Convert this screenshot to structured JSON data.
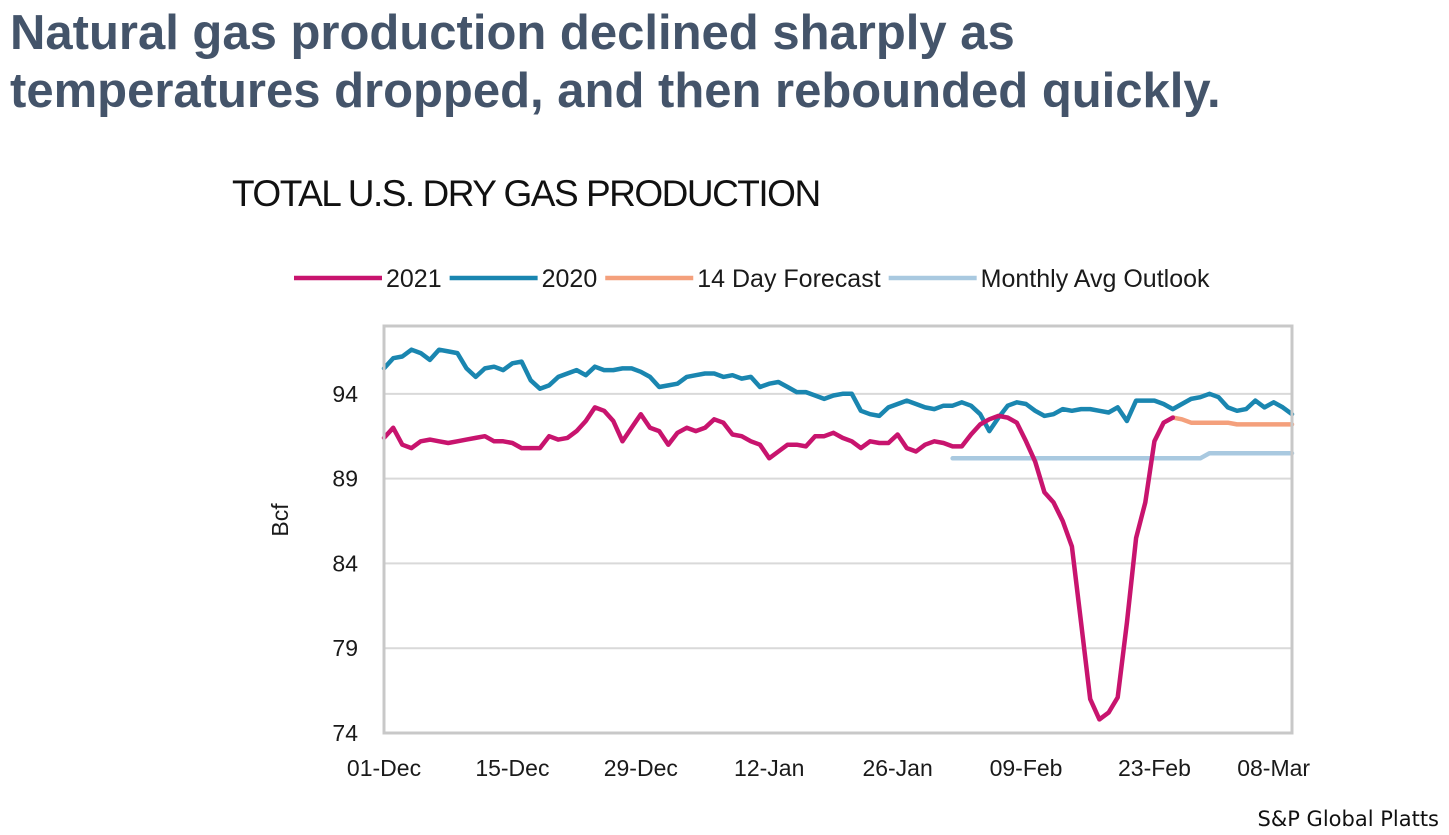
{
  "headline": {
    "line1": "Natural gas production declined sharply as",
    "line2": "temperatures dropped, and then rebounded quickly."
  },
  "source": "S&P Global Platts",
  "colors": {
    "headline": "#44546a",
    "series_2021": "#c8146e",
    "series_2020": "#1a86b0",
    "series_forecast": "#f4a07c",
    "series_outlook": "#a9c9e0"
  },
  "chart_data": {
    "type": "line",
    "title": "TOTAL U.S. DRY GAS PRODUCTION",
    "xlabel": "",
    "ylabel": "Bcf",
    "xlim": [
      "01-Dec",
      "10-Mar"
    ],
    "ylim": [
      74,
      98
    ],
    "yticks": [
      74,
      79,
      84,
      89,
      94
    ],
    "xticks": [
      "01-Dec",
      "15-Dec",
      "29-Dec",
      "12-Jan",
      "26-Jan",
      "09-Feb",
      "23-Feb",
      "08-Mar"
    ],
    "grid": true,
    "legend_position": "top",
    "series": [
      {
        "name": "2021",
        "color": "#c8146e",
        "x": [
          "01-Dec",
          "02-Dec",
          "03-Dec",
          "04-Dec",
          "05-Dec",
          "06-Dec",
          "07-Dec",
          "08-Dec",
          "09-Dec",
          "10-Dec",
          "11-Dec",
          "12-Dec",
          "13-Dec",
          "14-Dec",
          "15-Dec",
          "16-Dec",
          "17-Dec",
          "18-Dec",
          "19-Dec",
          "20-Dec",
          "21-Dec",
          "22-Dec",
          "23-Dec",
          "24-Dec",
          "25-Dec",
          "26-Dec",
          "27-Dec",
          "28-Dec",
          "29-Dec",
          "30-Dec",
          "31-Dec",
          "01-Jan",
          "02-Jan",
          "03-Jan",
          "04-Jan",
          "05-Jan",
          "06-Jan",
          "07-Jan",
          "08-Jan",
          "09-Jan",
          "10-Jan",
          "11-Jan",
          "12-Jan",
          "13-Jan",
          "14-Jan",
          "15-Jan",
          "16-Jan",
          "17-Jan",
          "18-Jan",
          "19-Jan",
          "20-Jan",
          "21-Jan",
          "22-Jan",
          "23-Jan",
          "24-Jan",
          "25-Jan",
          "26-Jan",
          "27-Jan",
          "28-Jan",
          "29-Jan",
          "30-Jan",
          "31-Jan",
          "01-Feb",
          "02-Feb",
          "03-Feb",
          "04-Feb",
          "05-Feb",
          "06-Feb",
          "07-Feb",
          "08-Feb",
          "09-Feb",
          "10-Feb",
          "11-Feb",
          "12-Feb",
          "13-Feb",
          "14-Feb",
          "15-Feb",
          "16-Feb",
          "17-Feb",
          "18-Feb",
          "19-Feb",
          "20-Feb",
          "21-Feb",
          "22-Feb",
          "23-Feb",
          "24-Feb",
          "25-Feb"
        ],
        "y": [
          91.4,
          92.0,
          91.0,
          90.8,
          91.2,
          91.3,
          91.2,
          91.1,
          91.2,
          91.3,
          91.4,
          91.5,
          91.2,
          91.2,
          91.1,
          90.8,
          90.8,
          90.8,
          91.5,
          91.3,
          91.4,
          91.8,
          92.4,
          93.2,
          93.0,
          92.4,
          91.2,
          92.0,
          92.8,
          92.0,
          91.8,
          91.0,
          91.7,
          92.0,
          91.8,
          92.0,
          92.5,
          92.3,
          91.6,
          91.5,
          91.2,
          91.0,
          90.2,
          90.6,
          91.0,
          91.0,
          90.9,
          91.5,
          91.5,
          91.7,
          91.4,
          91.2,
          90.8,
          91.2,
          91.1,
          91.1,
          91.6,
          90.8,
          90.6,
          91.0,
          91.2,
          91.1,
          90.9,
          90.9,
          91.6,
          92.2,
          92.5,
          92.7,
          92.6,
          92.3,
          91.2,
          90.0,
          88.2,
          87.6,
          86.5,
          85.0,
          80.5,
          76.0,
          74.8,
          75.2,
          76.1,
          80.5,
          85.5,
          87.6,
          91.2,
          92.3,
          92.6
        ]
      },
      {
        "name": "2020",
        "color": "#1a86b0",
        "x": [
          "01-Dec",
          "02-Dec",
          "03-Dec",
          "04-Dec",
          "05-Dec",
          "06-Dec",
          "07-Dec",
          "08-Dec",
          "09-Dec",
          "10-Dec",
          "11-Dec",
          "12-Dec",
          "13-Dec",
          "14-Dec",
          "15-Dec",
          "16-Dec",
          "17-Dec",
          "18-Dec",
          "19-Dec",
          "20-Dec",
          "21-Dec",
          "22-Dec",
          "23-Dec",
          "24-Dec",
          "25-Dec",
          "26-Dec",
          "27-Dec",
          "28-Dec",
          "29-Dec",
          "30-Dec",
          "31-Dec",
          "01-Jan",
          "02-Jan",
          "03-Jan",
          "04-Jan",
          "05-Jan",
          "06-Jan",
          "07-Jan",
          "08-Jan",
          "09-Jan",
          "10-Jan",
          "11-Jan",
          "12-Jan",
          "13-Jan",
          "14-Jan",
          "15-Jan",
          "16-Jan",
          "17-Jan",
          "18-Jan",
          "19-Jan",
          "20-Jan",
          "21-Jan",
          "22-Jan",
          "23-Jan",
          "24-Jan",
          "25-Jan",
          "26-Jan",
          "27-Jan",
          "28-Jan",
          "29-Jan",
          "30-Jan",
          "31-Jan",
          "01-Feb",
          "02-Feb",
          "03-Feb",
          "04-Feb",
          "05-Feb",
          "06-Feb",
          "07-Feb",
          "08-Feb",
          "09-Feb",
          "10-Feb",
          "11-Feb",
          "12-Feb",
          "13-Feb",
          "14-Feb",
          "15-Feb",
          "16-Feb",
          "17-Feb",
          "18-Feb",
          "19-Feb",
          "20-Feb",
          "21-Feb",
          "22-Feb",
          "23-Feb",
          "24-Feb",
          "25-Feb",
          "26-Feb",
          "27-Feb",
          "28-Feb",
          "01-Mar",
          "02-Mar",
          "03-Mar",
          "04-Mar",
          "05-Mar",
          "06-Mar",
          "07-Mar",
          "08-Mar",
          "09-Mar",
          "10-Mar"
        ],
        "y": [
          95.5,
          96.1,
          96.2,
          96.6,
          96.4,
          96.0,
          96.6,
          96.5,
          96.4,
          95.5,
          95.0,
          95.5,
          95.6,
          95.4,
          95.8,
          95.9,
          94.8,
          94.3,
          94.5,
          95.0,
          95.2,
          95.4,
          95.1,
          95.6,
          95.4,
          95.4,
          95.5,
          95.5,
          95.3,
          95.0,
          94.4,
          94.5,
          94.6,
          95.0,
          95.1,
          95.2,
          95.2,
          95.0,
          95.1,
          94.9,
          95.0,
          94.4,
          94.6,
          94.7,
          94.4,
          94.1,
          94.1,
          93.9,
          93.7,
          93.9,
          94.0,
          94.0,
          93.0,
          92.8,
          92.7,
          93.2,
          93.4,
          93.6,
          93.4,
          93.2,
          93.1,
          93.3,
          93.3,
          93.5,
          93.3,
          92.8,
          91.8,
          92.6,
          93.3,
          93.5,
          93.4,
          93.0,
          92.7,
          92.8,
          93.1,
          93.0,
          93.1,
          93.1,
          93.0,
          92.9,
          93.2,
          92.4,
          93.6,
          93.6,
          93.6,
          93.4,
          93.1,
          93.4,
          93.7,
          93.8,
          94.0,
          93.8,
          93.2,
          93.0,
          93.1,
          93.6,
          93.2,
          93.5,
          93.2,
          92.8
        ]
      },
      {
        "name": "14 Day Forecast",
        "color": "#f4a07c",
        "x": [
          "25-Feb",
          "26-Feb",
          "27-Feb",
          "28-Feb",
          "01-Mar",
          "02-Mar",
          "03-Mar",
          "04-Mar",
          "05-Mar",
          "06-Mar",
          "07-Mar",
          "08-Mar",
          "09-Mar",
          "10-Mar"
        ],
        "y": [
          92.6,
          92.5,
          92.3,
          92.3,
          92.3,
          92.3,
          92.3,
          92.2,
          92.2,
          92.2,
          92.2,
          92.2,
          92.2,
          92.2
        ]
      },
      {
        "name": "Monthly Avg Outlook",
        "color": "#a9c9e0",
        "x": [
          "01-Feb",
          "28-Feb",
          "01-Mar",
          "10-Mar"
        ],
        "y": [
          90.2,
          90.2,
          90.5,
          90.5
        ]
      }
    ]
  }
}
